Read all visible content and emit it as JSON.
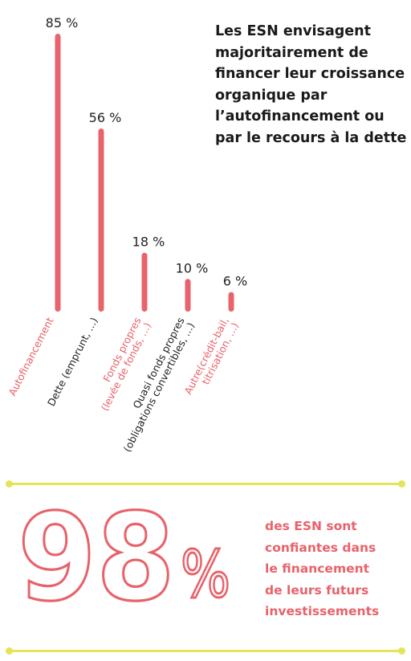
{
  "colors": {
    "bar": "#e8636b",
    "accent": "#e8626a",
    "dark": "#222222",
    "divider": "#e4e45a"
  },
  "headline": [
    "Les ESN envisagent",
    "majoritairement de",
    "financer leur croissance",
    "organique par",
    "l’autofinancement ou",
    "par le recours à la dette"
  ],
  "chart_data": {
    "type": "bar",
    "categories": [
      {
        "lines": [
          "Autofinancement"
        ],
        "color": "accent"
      },
      {
        "lines": [
          "Dette (emprunt, ...)"
        ],
        "color": "dark"
      },
      {
        "lines": [
          "Fonds propres",
          "(levée de fonds, ...)"
        ],
        "color": "accent"
      },
      {
        "lines": [
          "Quasi fonds propres",
          "(obligations convertibles, ...)"
        ],
        "color": "dark"
      },
      {
        "lines": [
          "Autre(crédit-bail,",
          "titrisation, ...)"
        ],
        "color": "accent"
      }
    ],
    "values": [
      85,
      56,
      18,
      10,
      6
    ],
    "value_labels": [
      "85 %",
      "56 %",
      "18 %",
      "10 %",
      "6 %"
    ],
    "unit": "%"
  },
  "highlight": {
    "value": "98",
    "symbol": "%",
    "description": [
      "des ESN sont",
      "confiantes dans",
      "le financement",
      "de leurs futurs",
      "investissements"
    ]
  }
}
